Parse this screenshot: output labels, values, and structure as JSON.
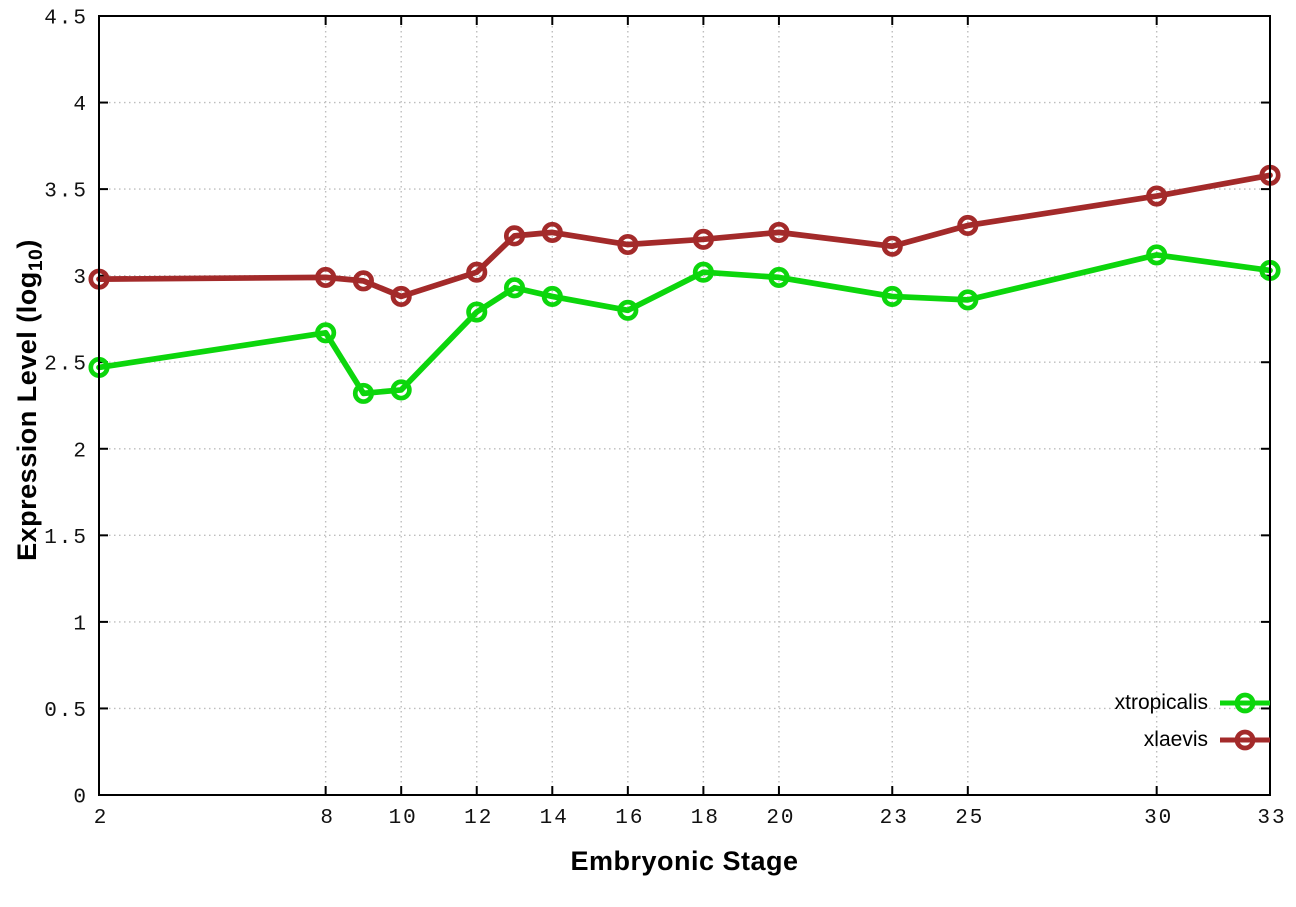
{
  "chart_data": {
    "type": "line",
    "title": "",
    "xlabel": "Embryonic Stage",
    "ylabel": {
      "prefix": "Expression Level (log",
      "subscript": "10",
      "suffix": ")"
    },
    "x": [
      2,
      8,
      9,
      10,
      12,
      13,
      14,
      16,
      18,
      20,
      23,
      25,
      30,
      33
    ],
    "series": [
      {
        "name": "xtropicalis",
        "color": "#0cd60c",
        "marker": "open-circle",
        "values": [
          2.47,
          2.67,
          2.32,
          2.34,
          2.79,
          2.93,
          2.88,
          2.8,
          3.02,
          2.99,
          2.88,
          2.86,
          3.12,
          3.03
        ]
      },
      {
        "name": "xlaevis",
        "color": "#a32a2a",
        "marker": "open-circle",
        "values": [
          2.98,
          2.99,
          2.97,
          2.88,
          3.02,
          3.23,
          3.25,
          3.18,
          3.21,
          3.25,
          3.17,
          3.29,
          3.46,
          3.58
        ]
      }
    ],
    "xlim": [
      2,
      33
    ],
    "ylim": [
      0,
      4.5
    ],
    "x_tick_values": [
      2,
      8,
      10,
      12,
      14,
      16,
      18,
      20,
      23,
      25,
      30,
      33
    ],
    "x_tick_labels": [
      "2",
      "8",
      "10",
      "12",
      "14",
      "16",
      "18",
      "20",
      "23",
      "25",
      "30",
      "33"
    ],
    "y_tick_values": [
      0,
      0.5,
      1,
      1.5,
      2,
      2.5,
      3,
      3.5,
      4,
      4.5
    ],
    "y_tick_labels": [
      "0",
      "0.5",
      "1",
      "1.5",
      "2",
      "2.5",
      "3",
      "3.5",
      "4",
      "4.5"
    ],
    "grid": true,
    "legend_position": "bottom-right"
  },
  "colors": {
    "background": "#ffffff",
    "grid": "#bdbdbd",
    "axis": "#000000",
    "tick_text": "#111111"
  }
}
